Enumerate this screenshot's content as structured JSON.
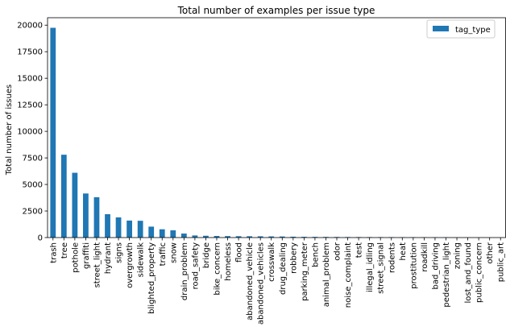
{
  "chart_data": {
    "type": "bar",
    "title": "Total number of examples per issue type",
    "xlabel": "",
    "ylabel": "Total number of issues",
    "ylim": [
      0,
      20700
    ],
    "yticks": [
      0,
      2500,
      5000,
      7500,
      10000,
      12500,
      15000,
      17500,
      20000
    ],
    "grid": false,
    "legend": {
      "placement": "top-right",
      "entries": [
        "tag_type"
      ]
    },
    "color": "#1f77b4",
    "categories": [
      "trash",
      "tree",
      "pothole",
      "graffiti",
      "street_light",
      "hydrant",
      "signs",
      "overgrowth",
      "sidewalk",
      "blighted_property",
      "traffic",
      "snow",
      "drain_problem",
      "road_safety",
      "bridge",
      "bike_concern",
      "homeless",
      "flood",
      "abandoned_vehicle",
      "abandoned_vehicles",
      "crosswalk",
      "drug_dealing",
      "robbery",
      "parking_meter",
      "bench",
      "animal_problem",
      "odor",
      "noise_complaint",
      "test",
      "illegal_idling",
      "street_signal",
      "rodents",
      "heat",
      "prostitution",
      "roadkill",
      "bad_driving",
      "pedestrian_light",
      "zoning",
      "lost_and_found",
      "public_concern",
      "other",
      "public_art"
    ],
    "series": [
      {
        "name": "tag_type",
        "values": [
          19750,
          7800,
          6100,
          4150,
          3800,
          2200,
          1900,
          1600,
          1580,
          1030,
          780,
          680,
          380,
          200,
          170,
          150,
          140,
          130,
          125,
          120,
          110,
          100,
          80,
          70,
          65,
          60,
          55,
          50,
          48,
          45,
          42,
          40,
          38,
          35,
          30,
          28,
          25,
          10,
          8,
          5,
          3,
          2
        ]
      }
    ]
  }
}
